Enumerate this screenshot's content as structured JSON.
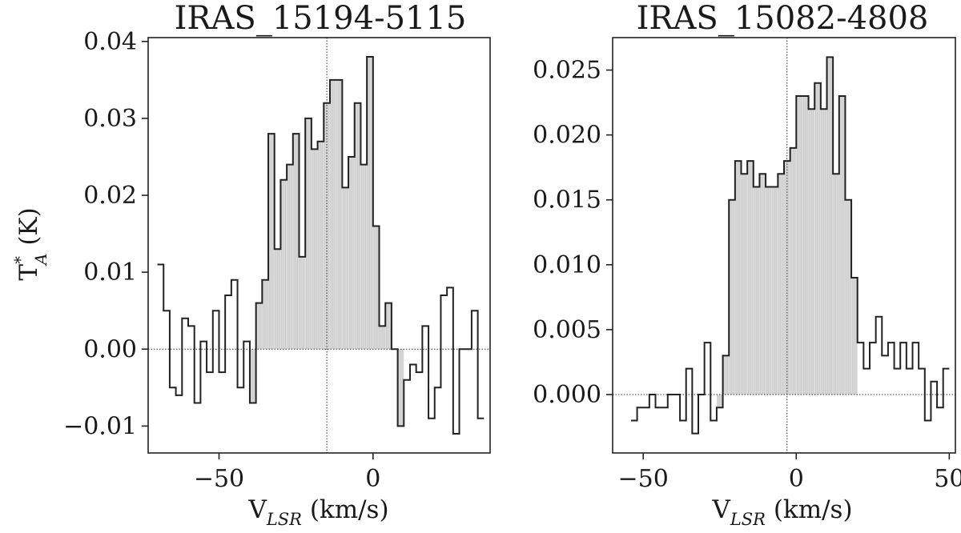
{
  "figure": {
    "ylabel_main": "T",
    "ylabel_sup": "*",
    "ylabel_sub": "A",
    "ylabel_unit": " (K)",
    "xlabel_main": "V",
    "xlabel_sub": "LSR",
    "xlabel_unit": " (km/s)"
  },
  "chart_data": [
    {
      "type": "line",
      "title": "IRAS_15194-5115",
      "xlim": [
        -73,
        38
      ],
      "ylim": [
        -0.0135,
        0.0405
      ],
      "xticks": [
        -50,
        0
      ],
      "xtick_labels": [
        "−50",
        "0"
      ],
      "yticks": [
        -0.01,
        0.0,
        0.01,
        0.02,
        0.03,
        0.04
      ],
      "ytick_labels": [
        "−0.01",
        "0.00",
        "0.01",
        "0.02",
        "0.03",
        "0.04"
      ],
      "vline_x": -15,
      "hline_y": 0,
      "shade_range": [
        -40,
        10
      ],
      "bin_width": 2,
      "x": [
        -69,
        -67,
        -65,
        -63,
        -61,
        -59,
        -57,
        -55,
        -53,
        -51,
        -49,
        -47,
        -45,
        -43,
        -41,
        -39,
        -37,
        -35,
        -33,
        -31,
        -29,
        -27,
        -25,
        -23,
        -21,
        -19,
        -17,
        -15,
        -13,
        -11,
        -9,
        -7,
        -5,
        -3,
        -1,
        1,
        3,
        5,
        7,
        9,
        11,
        13,
        15,
        17,
        19,
        21,
        23,
        25,
        27,
        29,
        31,
        33,
        35
      ],
      "y": [
        0.011,
        0.005,
        -0.005,
        -0.006,
        0.004,
        0.003,
        -0.007,
        0.001,
        -0.003,
        0.005,
        -0.003,
        0.007,
        0.009,
        -0.005,
        0.001,
        -0.007,
        0.006,
        0.009,
        0.028,
        0.013,
        0.022,
        0.024,
        0.028,
        0.012,
        0.03,
        0.026,
        0.027,
        0.032,
        0.035,
        0.035,
        0.021,
        0.025,
        0.032,
        0.024,
        0.038,
        0.016,
        0.003,
        0.006,
        0.0,
        -0.01,
        -0.004,
        -0.002,
        -0.003,
        0.003,
        -0.009,
        -0.005,
        0.007,
        0.008,
        -0.011,
        0.0,
        0.0,
        0.005,
        -0.009
      ]
    },
    {
      "type": "line",
      "title": "IRAS_15082-4808",
      "xlim": [
        -60,
        52
      ],
      "ylim": [
        -0.0045,
        0.0275
      ],
      "xticks": [
        -50,
        0,
        50
      ],
      "xtick_labels": [
        "−50",
        "0",
        "50"
      ],
      "yticks": [
        0.0,
        0.005,
        0.01,
        0.015,
        0.02,
        0.025
      ],
      "ytick_labels": [
        "0.000",
        "0.005",
        "0.010",
        "0.015",
        "0.020",
        "0.025"
      ],
      "vline_x": -3,
      "hline_y": 0,
      "shade_range": [
        -26,
        20
      ],
      "bin_width": 2,
      "x": [
        -53,
        -51,
        -49,
        -47,
        -45,
        -43,
        -41,
        -39,
        -37,
        -35,
        -33,
        -31,
        -29,
        -27,
        -25,
        -23,
        -21,
        -19,
        -17,
        -15,
        -13,
        -11,
        -9,
        -7,
        -5,
        -3,
        -1,
        1,
        3,
        5,
        7,
        9,
        11,
        13,
        15,
        17,
        19,
        21,
        23,
        25,
        27,
        29,
        31,
        33,
        35,
        37,
        39,
        41,
        43,
        45,
        47,
        49
      ],
      "y": [
        -0.002,
        -0.001,
        -0.001,
        0.0,
        -0.001,
        -0.001,
        0.0,
        0.0,
        -0.002,
        0.002,
        -0.003,
        0.0,
        0.004,
        -0.002,
        -0.001,
        0.003,
        0.015,
        0.018,
        0.017,
        0.018,
        0.016,
        0.017,
        0.016,
        0.016,
        0.017,
        0.018,
        0.019,
        0.023,
        0.023,
        0.022,
        0.024,
        0.022,
        0.026,
        0.017,
        0.023,
        0.015,
        0.009,
        0.004,
        0.002,
        0.004,
        0.006,
        0.003,
        0.004,
        0.002,
        0.004,
        0.002,
        0.004,
        0.002,
        -0.002,
        0.001,
        -0.001,
        0.002
      ]
    }
  ]
}
